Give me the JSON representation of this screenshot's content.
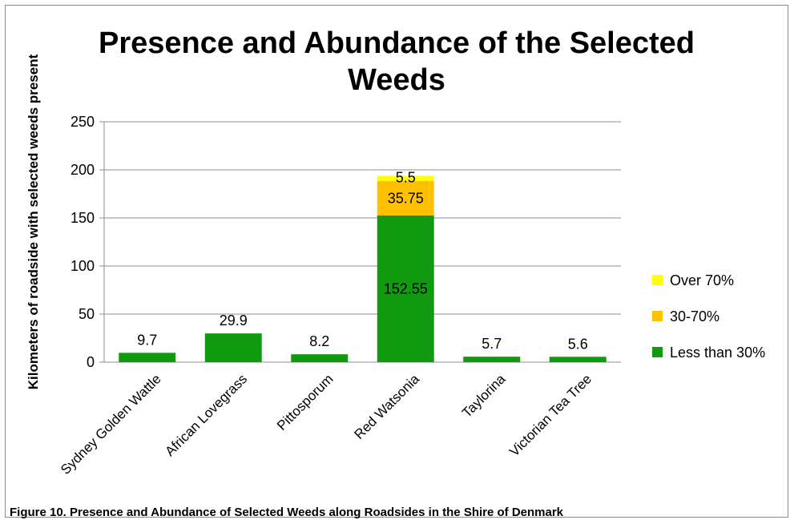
{
  "chart_data": {
    "type": "bar",
    "stacked": true,
    "title": "Presence and Abundance of the Selected Weeds",
    "title_lines": [
      "Presence and Abundance of the Selected",
      "Weeds"
    ],
    "xlabel": "",
    "ylabel": "Kilometers of roadside with selected weeds present",
    "ylim": [
      0,
      250
    ],
    "yticks": [
      0,
      50,
      100,
      150,
      200,
      250
    ],
    "grid": true,
    "legend_position": "right",
    "categories": [
      "Sydney Golden Wattle",
      "African Lovegrass",
      "Pittosporum",
      "Red Watsonia",
      "Taylorina",
      "Victorian Tea Tree"
    ],
    "series": [
      {
        "name": "Less than 30%",
        "color": "#0f9a0f",
        "values": [
          9.7,
          29.9,
          8.2,
          152.55,
          5.7,
          5.6
        ],
        "labels": [
          "9.7",
          "29.9",
          "8.2",
          "152.55",
          "5.7",
          "5.6"
        ]
      },
      {
        "name": "30-70%",
        "color": "#ffc000",
        "values": [
          0,
          0,
          0,
          35.75,
          0,
          0
        ],
        "labels": [
          "",
          "",
          "",
          "35.75",
          "",
          ""
        ]
      },
      {
        "name": "Over 70%",
        "color": "#ffff00",
        "values": [
          0,
          0,
          0,
          5.5,
          0,
          0
        ],
        "labels": [
          "",
          "",
          "",
          "5.5",
          "",
          ""
        ]
      }
    ]
  },
  "caption": "Figure 10. Presence and Abundance of Selected  Weeds along Roadsides in the Shire of Denmark"
}
